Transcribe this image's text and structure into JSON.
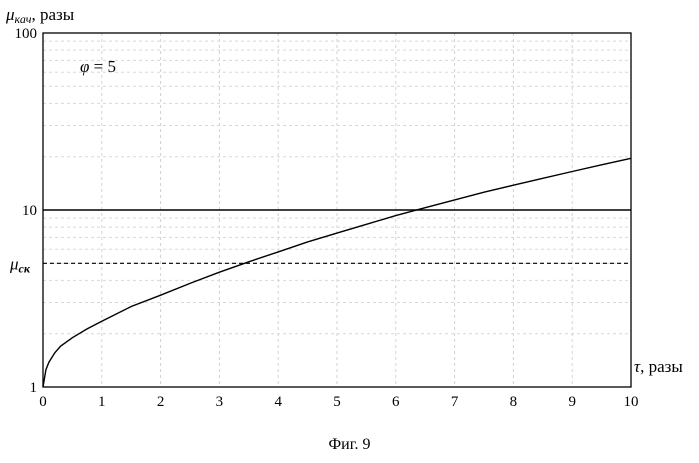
{
  "chart_data": {
    "type": "line",
    "xlabel": {
      "symbol": "τ",
      "unit": ", разы"
    },
    "ylabel": {
      "symbol": "μ",
      "sub": "кач",
      "unit": ", разы"
    },
    "annotation": {
      "symbol": "φ",
      "text": " = 5"
    },
    "x_ticks": [
      "0",
      "1",
      "2",
      "3",
      "4",
      "5",
      "6",
      "7",
      "8",
      "9",
      "10"
    ],
    "y_ticks": [
      {
        "value": 1,
        "label": "1"
      },
      {
        "value": 10,
        "label": "10"
      },
      {
        "value": 100,
        "label": "100"
      }
    ],
    "xlim": [
      0,
      10
    ],
    "ylim": [
      1,
      100
    ],
    "y_scale": "log",
    "grid": true,
    "series": [
      {
        "style": "solid",
        "x": [
          0,
          0.05,
          0.1,
          0.2,
          0.3,
          0.5,
          0.75,
          1,
          1.5,
          2,
          2.5,
          3,
          3.5,
          4,
          4.5,
          5,
          5.5,
          6,
          6.5,
          7,
          7.5,
          8,
          8.5,
          9,
          9.5,
          10
        ],
        "y": [
          1,
          1.25,
          1.38,
          1.56,
          1.7,
          1.9,
          2.13,
          2.35,
          2.85,
          3.3,
          3.85,
          4.45,
          5.1,
          5.8,
          6.6,
          7.4,
          8.3,
          9.3,
          10.3,
          11.4,
          12.6,
          13.8,
          15.1,
          16.5,
          18,
          19.6
        ]
      },
      {
        "style": "solid",
        "x": [
          0,
          10
        ],
        "y": [
          10,
          10
        ]
      },
      {
        "style": "dashed",
        "x": [
          0,
          10
        ],
        "y": [
          5,
          5
        ]
      }
    ],
    "reference_labels": [
      {
        "value": 5,
        "symbol": "μ",
        "sub": "ск"
      }
    ]
  },
  "caption": "Фиг. 9"
}
